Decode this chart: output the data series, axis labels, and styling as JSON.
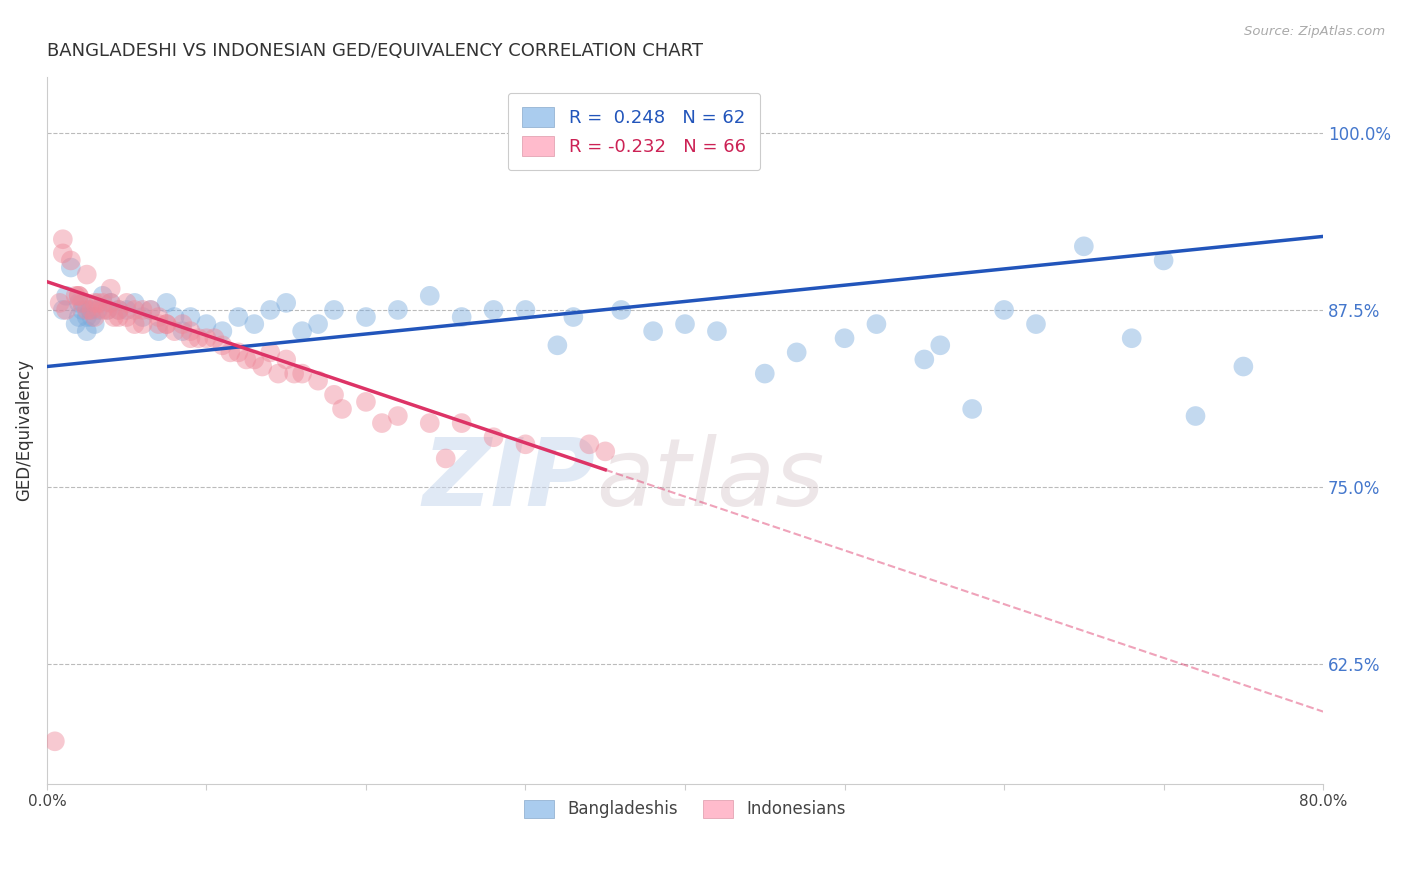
{
  "title": "BANGLADESHI VS INDONESIAN GED/EQUIVALENCY CORRELATION CHART",
  "source": "Source: ZipAtlas.com",
  "ylabel": "GED/Equivalency",
  "right_yticks": [
    62.5,
    75.0,
    87.5,
    100.0
  ],
  "right_ytick_labels": [
    "62.5%",
    "75.0%",
    "87.5%",
    "100.0%"
  ],
  "xmin": 0.0,
  "xmax": 80.0,
  "ymin": 54.0,
  "ymax": 104.0,
  "legend_blue_label": "R =  0.248   N = 62",
  "legend_pink_label": "R = -0.232   N = 66",
  "bangladeshi_color": "#7aabdd",
  "indonesian_color": "#ee8899",
  "blue_line_color": "#2255bb",
  "pink_line_color": "#dd3366",
  "watermark_zip": "ZIP",
  "watermark_atlas": "atlas",
  "blue_intercept": 83.5,
  "blue_slope": 0.115,
  "pink_intercept": 89.5,
  "pink_slope": -0.38,
  "pink_solid_end": 35.0,
  "bangladeshi_x": [
    1.0,
    1.2,
    1.5,
    1.8,
    2.0,
    2.0,
    2.2,
    2.3,
    2.5,
    2.5,
    2.7,
    2.8,
    3.0,
    3.2,
    3.5,
    3.8,
    4.0,
    4.5,
    5.0,
    5.5,
    6.0,
    6.5,
    7.0,
    7.5,
    8.0,
    8.5,
    9.0,
    10.0,
    11.0,
    12.0,
    13.0,
    14.0,
    15.0,
    16.0,
    17.0,
    18.0,
    20.0,
    22.0,
    24.0,
    26.0,
    28.0,
    30.0,
    33.0,
    36.0,
    40.0,
    45.0,
    50.0,
    56.0,
    60.0,
    65.0,
    70.0,
    75.0,
    32.0,
    38.0,
    42.0,
    47.0,
    52.0,
    55.0,
    58.0,
    62.0,
    68.0,
    72.0
  ],
  "bangladeshi_y": [
    87.5,
    88.5,
    90.5,
    86.5,
    87.0,
    88.0,
    87.5,
    88.0,
    87.0,
    86.0,
    87.5,
    87.0,
    86.5,
    87.5,
    88.5,
    87.5,
    88.0,
    87.5,
    87.5,
    88.0,
    87.0,
    87.5,
    86.0,
    88.0,
    87.0,
    86.0,
    87.0,
    86.5,
    86.0,
    87.0,
    86.5,
    87.5,
    88.0,
    86.0,
    86.5,
    87.5,
    87.0,
    87.5,
    88.5,
    87.0,
    87.5,
    87.5,
    87.0,
    87.5,
    86.5,
    83.0,
    85.5,
    85.0,
    87.5,
    92.0,
    91.0,
    83.5,
    85.0,
    86.0,
    86.0,
    84.5,
    86.5,
    84.0,
    80.5,
    86.5,
    85.5,
    80.0
  ],
  "indonesian_x": [
    0.8,
    1.0,
    1.2,
    1.5,
    1.8,
    2.0,
    2.2,
    2.5,
    2.8,
    3.0,
    3.2,
    3.5,
    3.8,
    4.0,
    4.2,
    4.5,
    5.0,
    5.5,
    6.0,
    6.5,
    7.0,
    7.5,
    8.0,
    8.5,
    9.0,
    10.0,
    11.0,
    12.0,
    13.0,
    14.0,
    15.0,
    16.0,
    17.0,
    18.0,
    20.0,
    22.0,
    24.0,
    26.0,
    28.0,
    30.0,
    2.0,
    2.5,
    3.0,
    4.0,
    5.0,
    6.0,
    7.5,
    9.5,
    11.5,
    13.5,
    15.5,
    18.5,
    21.0,
    25.0,
    3.5,
    5.5,
    4.5,
    7.0,
    9.0,
    10.5,
    12.5,
    14.5,
    34.0,
    35.0,
    1.0,
    0.5
  ],
  "indonesian_y": [
    88.0,
    91.5,
    87.5,
    91.0,
    88.5,
    88.5,
    88.0,
    87.5,
    87.5,
    88.0,
    88.0,
    87.5,
    87.5,
    88.0,
    87.0,
    87.0,
    87.0,
    87.5,
    87.5,
    87.5,
    87.0,
    86.5,
    86.0,
    86.5,
    86.0,
    85.5,
    85.0,
    84.5,
    84.0,
    84.5,
    84.0,
    83.0,
    82.5,
    81.5,
    81.0,
    80.0,
    79.5,
    79.5,
    78.5,
    78.0,
    88.5,
    90.0,
    87.0,
    89.0,
    88.0,
    86.5,
    86.5,
    85.5,
    84.5,
    83.5,
    83.0,
    80.5,
    79.5,
    77.0,
    88.0,
    86.5,
    87.5,
    86.5,
    85.5,
    85.5,
    84.0,
    83.0,
    78.0,
    77.5,
    92.5,
    57.0
  ]
}
